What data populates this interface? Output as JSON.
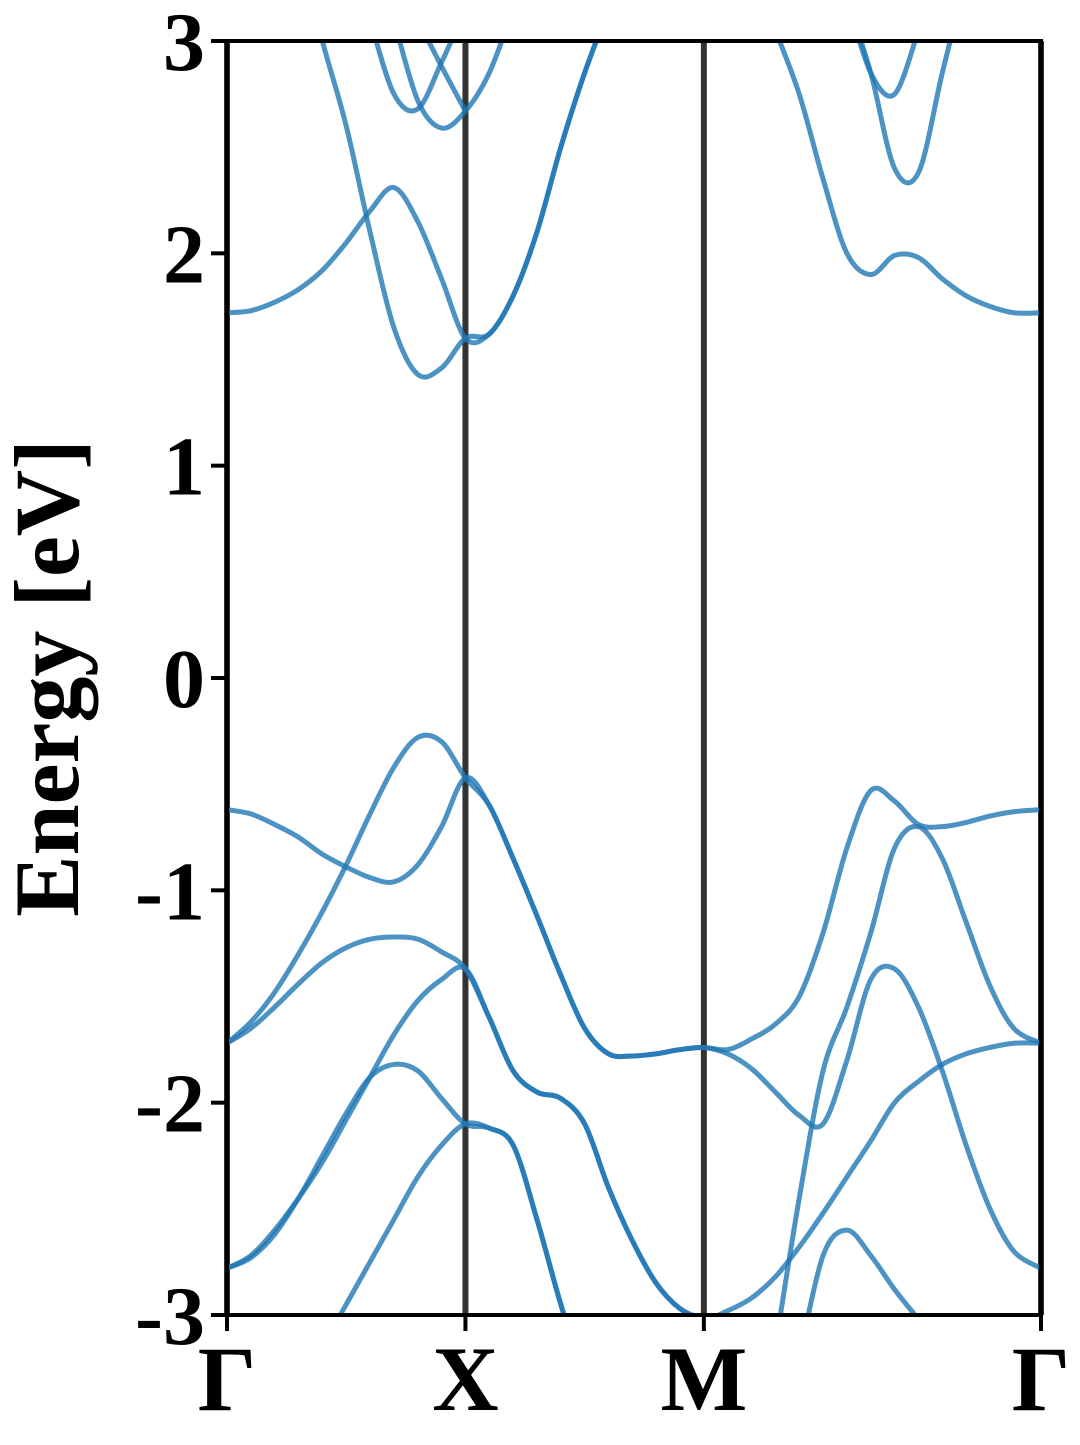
{
  "chart_data": {
    "type": "line",
    "y_label": "Energy [eV]",
    "x": [
      0,
      0.05,
      0.1,
      0.15,
      0.2,
      0.25,
      0.3,
      0.35,
      0.4,
      0.45,
      0.5,
      0.55,
      0.6,
      0.65,
      0.7,
      0.75,
      0.8,
      0.85,
      0.9,
      0.95,
      1.0,
      1.05,
      1.1,
      1.15,
      1.2,
      1.25,
      1.3,
      1.35,
      1.4,
      1.45,
      1.5,
      1.55,
      1.6,
      1.65,
      1.707
    ],
    "xlim": [
      0,
      1.707
    ],
    "xticks": [
      {
        "value": 0,
        "label": "Γ"
      },
      {
        "value": 0.5,
        "label": "X"
      },
      {
        "value": 1.0,
        "label": "M"
      },
      {
        "value": 1.707,
        "label": "Γ"
      }
    ],
    "xgrid": true,
    "ylim": [
      -3,
      3
    ],
    "yticks": [
      -3,
      -2,
      -1,
      0,
      1,
      2,
      3
    ],
    "series": [
      {
        "color": "#1f77b4",
        "values": [
          -0.62,
          -0.64,
          -0.69,
          -0.75,
          -0.83,
          -0.89,
          -0.94,
          -0.96,
          -0.88,
          -0.7,
          -0.47,
          -0.6,
          -0.85,
          -1.12,
          -1.4,
          -1.65,
          -1.77,
          -1.78,
          -1.77,
          -1.75,
          -1.74,
          -1.75,
          -1.7,
          -1.63,
          -1.5,
          -1.2,
          -0.8,
          -0.53,
          -0.58,
          -0.69,
          -0.7,
          -0.68,
          -0.65,
          -0.63,
          -0.62
        ]
      },
      {
        "color": "#1f77b4",
        "values": [
          -1.72,
          -1.62,
          -1.48,
          -1.3,
          -1.1,
          -0.88,
          -0.64,
          -0.42,
          -0.28,
          -0.3,
          -0.47,
          -0.6,
          -0.85,
          -1.12,
          -1.4,
          -1.65,
          -1.77,
          -1.78,
          -1.77,
          -1.75,
          -1.74,
          -1.77,
          -1.84,
          -1.95,
          -2.06,
          -2.1,
          -1.8,
          -1.42,
          -1.37,
          -1.55,
          -1.85,
          -2.2,
          -2.5,
          -2.7,
          -2.78
        ]
      },
      {
        "color": "#1f77b4",
        "values": [
          -1.72,
          -1.65,
          -1.55,
          -1.44,
          -1.34,
          -1.27,
          -1.23,
          -1.22,
          -1.23,
          -1.29,
          -1.37,
          -1.6,
          -1.85,
          -1.95,
          -1.98,
          -2.1,
          -2.4,
          -2.65,
          -2.85,
          -2.97,
          -3.02,
          -2.98,
          -2.92,
          -2.82,
          -2.68,
          -2.52,
          -2.35,
          -2.18,
          -2.0,
          -1.9,
          -1.82,
          -1.77,
          -1.74,
          -1.72,
          -1.72
        ]
      },
      {
        "color": "#1f77b4",
        "values": [
          -2.78,
          -2.72,
          -2.6,
          -2.45,
          -2.28,
          -2.08,
          -1.88,
          -1.68,
          -1.52,
          -1.42,
          -1.37,
          -1.6,
          -1.85,
          -1.95,
          -1.98,
          -2.1,
          -2.4,
          -2.65,
          -2.85,
          -2.97,
          -3.02,
          null,
          null,
          -3.15,
          -2.45,
          -1.85,
          -1.55,
          -1.2,
          -0.8,
          -0.7,
          -0.85,
          -1.15,
          -1.45,
          -1.65,
          -1.72
        ]
      },
      {
        "color": "#1f77b4",
        "values": [
          -2.78,
          -2.73,
          -2.62,
          -2.45,
          -2.25,
          -2.05,
          -1.88,
          -1.82,
          -1.85,
          -1.98,
          -2.1,
          -2.12,
          -2.2,
          -2.55,
          -2.95,
          -3.3,
          null,
          null,
          null,
          null,
          null,
          null,
          null,
          null,
          -3.2,
          -2.72,
          -2.6,
          -2.72,
          -2.88,
          -3.02,
          null,
          null,
          null,
          null,
          null
        ]
      },
      {
        "color": "#1f77b4",
        "values": [
          null,
          null,
          null,
          null,
          -3.15,
          -2.95,
          -2.75,
          -2.55,
          -2.35,
          -2.2,
          -2.1,
          -2.12,
          -2.2,
          -2.55,
          -2.95,
          -3.3,
          null,
          null,
          null,
          null,
          null,
          null,
          null,
          null,
          null,
          null,
          null,
          null,
          null,
          null,
          null,
          null,
          null,
          null,
          null
        ]
      },
      {
        "color": "#1f77b4",
        "values": [
          1.72,
          1.73,
          1.77,
          1.83,
          1.92,
          2.05,
          2.2,
          2.31,
          2.15,
          1.88,
          1.6,
          1.62,
          1.8,
          2.1,
          2.5,
          2.85,
          3.15,
          null,
          null,
          null,
          null,
          null,
          null,
          3.05,
          2.75,
          2.35,
          2.0,
          1.9,
          1.99,
          1.98,
          1.88,
          1.8,
          1.75,
          1.72,
          1.72
        ]
      },
      {
        "color": "#1f77b4",
        "values": [
          null,
          null,
          null,
          3.45,
          3.0,
          2.6,
          2.1,
          1.65,
          1.43,
          1.46,
          1.6,
          1.62,
          1.8,
          2.1,
          2.5,
          2.85,
          3.15,
          null,
          null,
          null,
          null,
          null,
          null,
          null,
          null,
          null,
          3.2,
          2.85,
          2.4,
          2.38,
          2.85,
          3.3,
          null,
          null,
          null
        ]
      },
      {
        "color": "#1f77b4",
        "values": [
          null,
          null,
          null,
          null,
          null,
          null,
          3.1,
          2.75,
          2.68,
          2.9,
          3.15,
          null,
          null,
          null,
          null,
          null,
          null,
          null,
          null,
          null,
          null,
          null,
          null,
          null,
          null,
          null,
          3.2,
          2.85,
          2.75,
          3.05,
          null,
          null,
          null,
          null,
          null
        ]
      },
      {
        "color": "#1f77b4",
        "values": [
          null,
          null,
          null,
          null,
          null,
          null,
          null,
          3.1,
          2.72,
          2.59,
          2.67,
          2.85,
          3.15,
          null,
          null,
          null,
          null,
          null,
          null,
          null,
          null,
          null,
          null,
          null,
          null,
          null,
          null,
          null,
          null,
          null,
          null,
          null,
          null,
          null,
          null
        ]
      },
      {
        "color": "#1f77b4",
        "values": [
          null,
          null,
          null,
          null,
          null,
          null,
          null,
          null,
          3.1,
          2.88,
          2.67,
          null,
          null,
          null,
          null,
          null,
          null,
          null,
          null,
          null,
          null,
          null,
          null,
          null,
          null,
          null,
          null,
          null,
          null,
          null,
          null,
          null,
          null,
          null,
          null
        ]
      }
    ]
  }
}
